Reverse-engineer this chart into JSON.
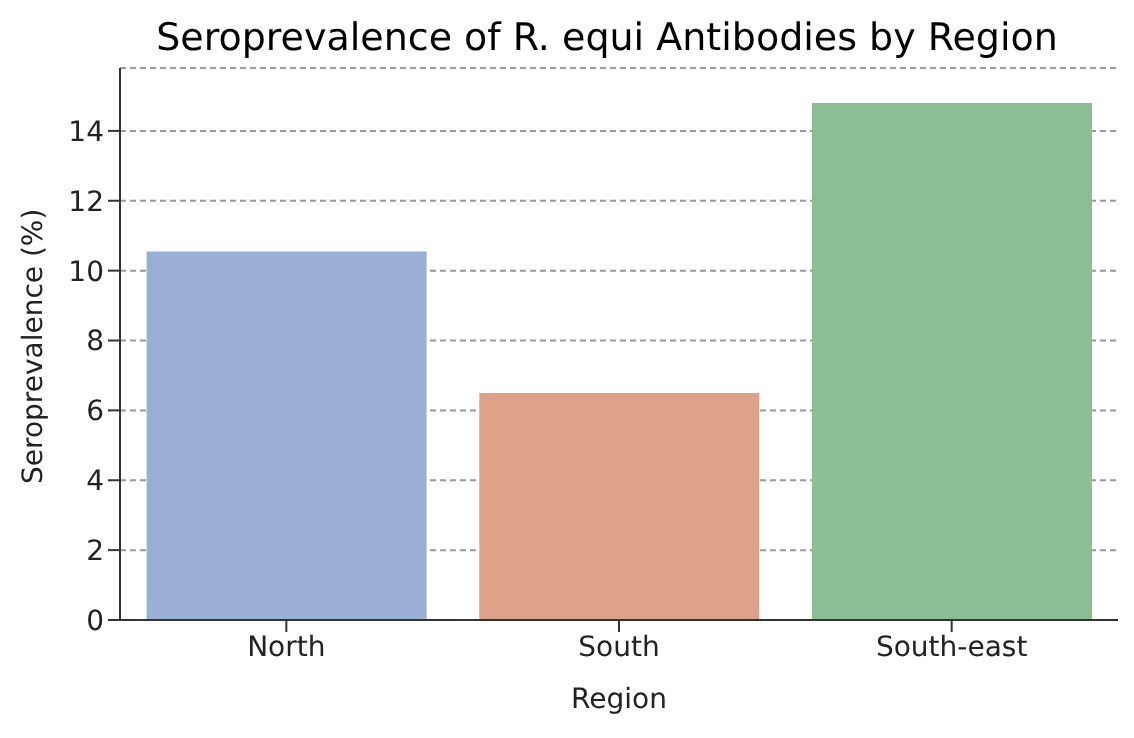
{
  "chart_data": {
    "type": "bar",
    "title": "Seroprevalence of R. equi Antibodies by Region",
    "xlabel": "Region",
    "ylabel": "Seroprevalence (%)",
    "categories": [
      "North",
      "South",
      "South-east"
    ],
    "values": [
      10.55,
      6.5,
      14.8
    ],
    "colors": [
      "#9aafd5",
      "#dba289",
      "#8cbe93"
    ],
    "ylim": [
      0,
      15.8
    ],
    "yticks": [
      0,
      2,
      4,
      6,
      8,
      10,
      12,
      14
    ],
    "grid": "y"
  }
}
